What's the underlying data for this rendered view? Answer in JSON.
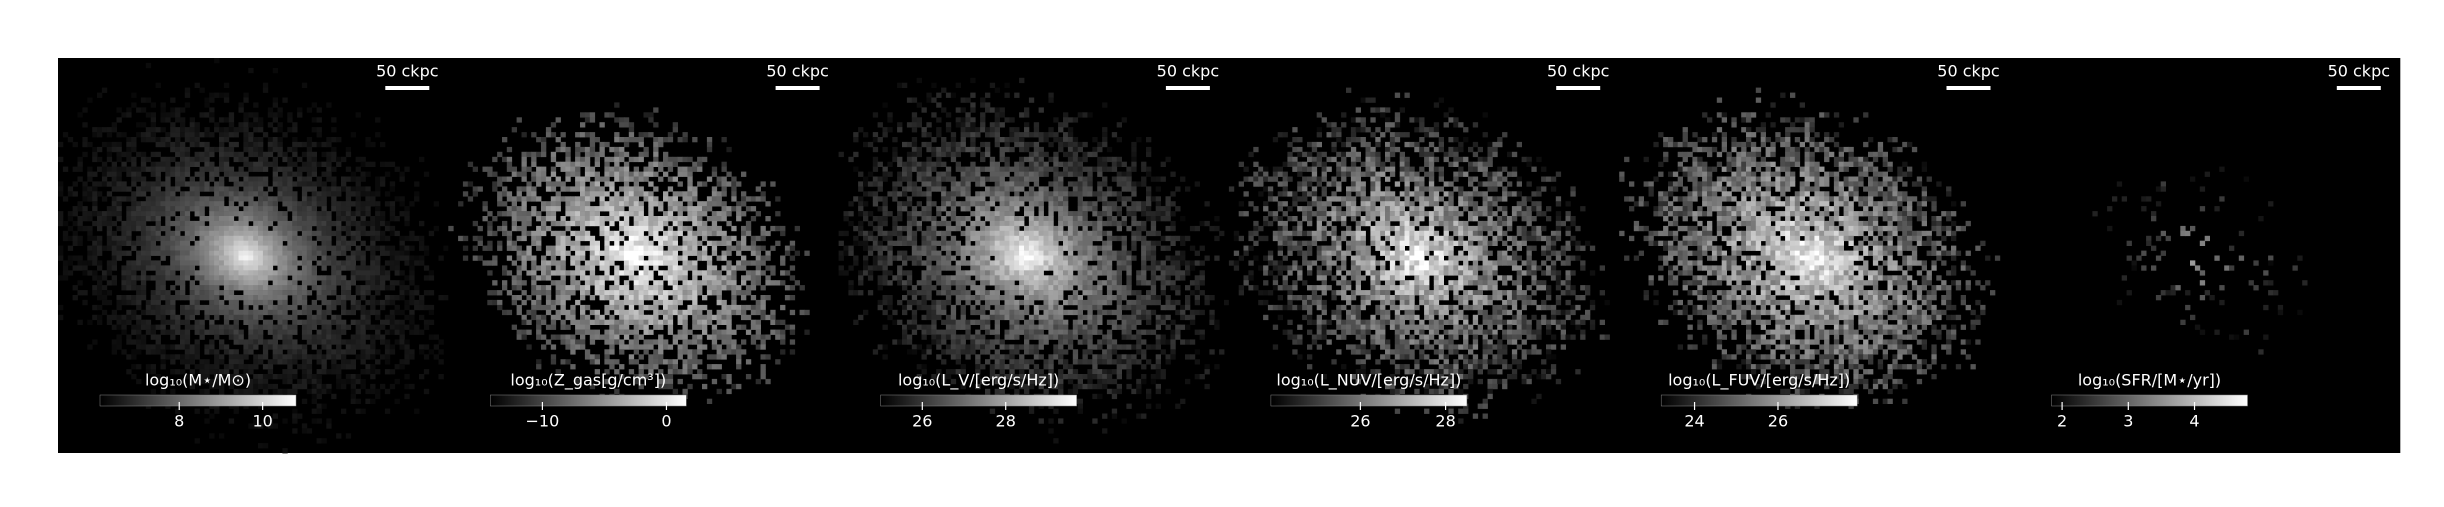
{
  "chart_data": [
    {
      "type": "image",
      "scalebar": "50 ckpc",
      "colorbar_label": "log₁₀(M⋆/M⊙)",
      "clim": [
        6.1,
        10.8
      ],
      "cticks": [
        8,
        10
      ]
    },
    {
      "type": "image",
      "scalebar": "50 ckpc",
      "colorbar_label": "log₁₀(Z_gas[g/cm³])",
      "clim": [
        -14.2,
        1.6
      ],
      "cticks": [
        {
          "value": -10,
          "label": "−10"
        },
        0
      ]
    },
    {
      "type": "image",
      "scalebar": "50 ckpc",
      "colorbar_label": "log₁₀(L_V/[erg/s/Hz])",
      "clim": [
        25.0,
        29.7
      ],
      "cticks": [
        26,
        28
      ]
    },
    {
      "type": "image",
      "scalebar": "50 ckpc",
      "colorbar_label": "log₁₀(L_NUV/[erg/s/Hz])",
      "clim": [
        23.9,
        28.5
      ],
      "cticks": [
        26,
        28
      ]
    },
    {
      "type": "image",
      "scalebar": "50 ckpc",
      "colorbar_label": "log₁₀(L_FUV/[erg/s/Hz])",
      "clim": [
        23.2,
        27.9
      ],
      "cticks": [
        24,
        26
      ]
    },
    {
      "type": "image",
      "scalebar": "50 ckpc",
      "colorbar_label": "log₁₀(SFR/[M⋆/yr])",
      "clim": [
        1.84,
        4.8
      ],
      "cticks": [
        2,
        3,
        4
      ]
    }
  ]
}
